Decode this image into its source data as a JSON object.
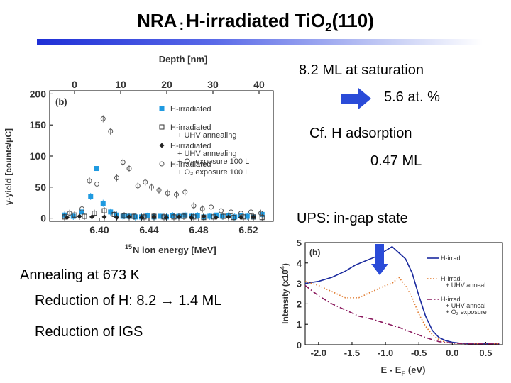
{
  "slide": {
    "title_pre": "NRA",
    "title_colon": ":",
    "title_main": "H-irradiated TiO",
    "title_sub": "2",
    "title_post": "(110)",
    "notes": {
      "saturation": "8.2 ML at saturation",
      "atpercent": "5.6 at. %",
      "cf": "Cf. H adsorption",
      "cf_value": "0.47 ML",
      "ups": "UPS: in-gap state",
      "annealing": "Annealing at 673 K",
      "reduction_h": "Reduction of H: 8.2 → 1.4 ML",
      "reduction_igs": "Reduction of IGS"
    },
    "colors": {
      "title_bar": "#1e2fd6",
      "arrow": "#2a4bd8"
    }
  },
  "chart_data": [
    {
      "type": "scatter",
      "panel_label": "(b)",
      "xlabel_prefix": "15",
      "xlabel": "N ion energy [MeV]",
      "ylabel": "γ-yield [counts/μC]",
      "top_axis_label": "Depth [nm]",
      "top_axis_ticks": [
        0,
        10,
        20,
        30,
        40
      ],
      "xlim": [
        6.36,
        6.54
      ],
      "ylim": [
        -5,
        205
      ],
      "xticks": [
        6.4,
        6.44,
        6.48,
        6.52
      ],
      "xtick_labels": [
        "6.40",
        "6.44",
        "6.48",
        "6.52"
      ],
      "yticks": [
        0,
        50,
        100,
        150,
        200
      ],
      "legend": [
        {
          "line1": "H-irradiated",
          "line2": "",
          "line3": ""
        },
        {
          "line1": "H-irradiated",
          "line2": "+ UHV annealing",
          "line3": ""
        },
        {
          "line1": "H-irradiated",
          "line2": "+ UHV annealing",
          "line3": "+ O₂ exposure 100 L"
        },
        {
          "line1": "H-irradiated",
          "line2": "+ O₂ exposure 100 L",
          "line3": ""
        }
      ],
      "series": [
        {
          "name": "H-irradiated",
          "marker": "filled-square",
          "color": "#1f9ae0",
          "x": [
            6.372,
            6.379,
            6.386,
            6.393,
            6.398,
            6.403,
            6.409,
            6.414,
            6.419,
            6.424,
            6.429,
            6.434,
            6.439,
            6.444,
            6.449,
            6.454,
            6.459,
            6.464,
            6.469,
            6.474,
            6.479,
            6.484,
            6.489,
            6.494,
            6.499,
            6.504,
            6.509,
            6.514,
            6.519,
            6.524,
            6.531
          ],
          "y": [
            5,
            3,
            10,
            35,
            80,
            24,
            10,
            5,
            3,
            3,
            2,
            2,
            4,
            2,
            3,
            2,
            4,
            3,
            5,
            3,
            4,
            2,
            3,
            5,
            3,
            4,
            2,
            4,
            3,
            2,
            6
          ]
        },
        {
          "name": "H-irradiated + UHV annealing",
          "marker": "open-square",
          "color": "#333333",
          "x": [
            6.372,
            6.38,
            6.388,
            6.396,
            6.404,
            6.412,
            6.42,
            6.428,
            6.436,
            6.444,
            6.452,
            6.46,
            6.468,
            6.476,
            6.484,
            6.492,
            6.5,
            6.508,
            6.516,
            6.524,
            6.531
          ],
          "y": [
            2,
            5,
            3,
            8,
            12,
            6,
            4,
            3,
            2,
            3,
            2,
            2,
            3,
            2,
            1,
            2,
            3,
            1,
            2,
            2,
            1
          ]
        },
        {
          "name": "H-irradiated + UHV annealing + O₂ exposure 100 L",
          "marker": "filled-diamond",
          "color": "#222222",
          "x": [
            6.374,
            6.384,
            6.394,
            6.404,
            6.414,
            6.424,
            6.434,
            6.444,
            6.454,
            6.464,
            6.474,
            6.484,
            6.494,
            6.504,
            6.514,
            6.524
          ],
          "y": [
            1,
            3,
            2,
            2,
            1,
            2,
            1,
            2,
            1,
            2,
            1,
            3,
            1,
            2,
            1,
            2
          ]
        },
        {
          "name": "H-irradiated + O₂ exposure 100 L",
          "marker": "open-circle",
          "color": "#555555",
          "x": [
            6.376,
            6.386,
            6.392,
            6.398,
            6.403,
            6.409,
            6.414,
            6.419,
            6.424,
            6.431,
            6.437,
            6.442,
            6.448,
            6.455,
            6.462,
            6.469,
            6.476,
            6.483,
            6.49,
            6.498,
            6.506,
            6.514,
            6.522,
            6.53
          ],
          "y": [
            8,
            15,
            60,
            55,
            160,
            140,
            65,
            90,
            80,
            52,
            58,
            50,
            45,
            40,
            38,
            42,
            20,
            15,
            18,
            12,
            10,
            8,
            10,
            8
          ]
        }
      ]
    },
    {
      "type": "line",
      "panel_label": "(b)",
      "xlabel": "E - E",
      "xlabel_sub": "F",
      "xlabel_unit": "(eV)",
      "ylabel": "Intensity (x10",
      "ylabel_sup": "4",
      "ylabel_end": ")",
      "xlim": [
        -2.2,
        0.75
      ],
      "ylim": [
        0,
        5
      ],
      "xticks": [
        -2.0,
        -1.5,
        -1.0,
        -0.5,
        0.0,
        0.5
      ],
      "xtick_labels": [
        "-2.0",
        "-1.5",
        "-1.0",
        "-0.5",
        "0.0",
        "0.5"
      ],
      "yticks": [
        0,
        1,
        2,
        3,
        4,
        5
      ],
      "legend": [
        {
          "line1": "H-irrad.",
          "line2": "",
          "line3": ""
        },
        {
          "line1": "H-irrad.",
          "line2": "+ UHV anneal",
          "line3": ""
        },
        {
          "line1": "H-irrad.",
          "line2": "+ UHV anneal",
          "line3": "+ O₂ exposure"
        }
      ],
      "series": [
        {
          "name": "H-irrad.",
          "style": "solid",
          "color": "#1a2a9e",
          "x": [
            -2.2,
            -2.0,
            -1.8,
            -1.6,
            -1.45,
            -1.3,
            -1.15,
            -1.0,
            -0.9,
            -0.8,
            -0.7,
            -0.6,
            -0.5,
            -0.4,
            -0.3,
            -0.2,
            -0.1,
            0.0,
            0.1,
            0.2,
            0.3,
            0.4,
            0.5,
            0.6,
            0.7
          ],
          "y": [
            3.0,
            3.1,
            3.3,
            3.6,
            3.9,
            4.1,
            4.3,
            4.6,
            4.8,
            4.5,
            4.2,
            3.5,
            2.4,
            1.4,
            0.7,
            0.35,
            0.2,
            0.12,
            0.08,
            0.06,
            0.05,
            0.05,
            0.05,
            0.05,
            0.05
          ]
        },
        {
          "name": "H-irrad. + UHV anneal",
          "style": "dotted",
          "color": "#e07a2e",
          "x": [
            -2.2,
            -2.0,
            -1.8,
            -1.6,
            -1.4,
            -1.2,
            -1.0,
            -0.9,
            -0.8,
            -0.7,
            -0.6,
            -0.5,
            -0.4,
            -0.3,
            -0.2,
            -0.1,
            0.0,
            0.2,
            0.4,
            0.6,
            0.7
          ],
          "y": [
            3.1,
            2.9,
            2.6,
            2.3,
            2.3,
            2.6,
            2.9,
            3.0,
            3.3,
            2.9,
            2.3,
            1.5,
            0.9,
            0.5,
            0.25,
            0.12,
            0.08,
            0.06,
            0.05,
            0.05,
            0.05
          ]
        },
        {
          "name": "H-irrad. + UHV anneal + O₂ exposure",
          "style": "dashdot",
          "color": "#8a1a5e",
          "x": [
            -2.2,
            -2.0,
            -1.8,
            -1.6,
            -1.4,
            -1.2,
            -1.0,
            -0.8,
            -0.6,
            -0.4,
            -0.2,
            0.0,
            0.2,
            0.4,
            0.6,
            0.7
          ],
          "y": [
            2.9,
            2.4,
            2.0,
            1.7,
            1.4,
            1.25,
            1.05,
            0.85,
            0.6,
            0.35,
            0.15,
            0.08,
            0.05,
            0.05,
            0.05,
            0.05
          ]
        }
      ]
    }
  ]
}
